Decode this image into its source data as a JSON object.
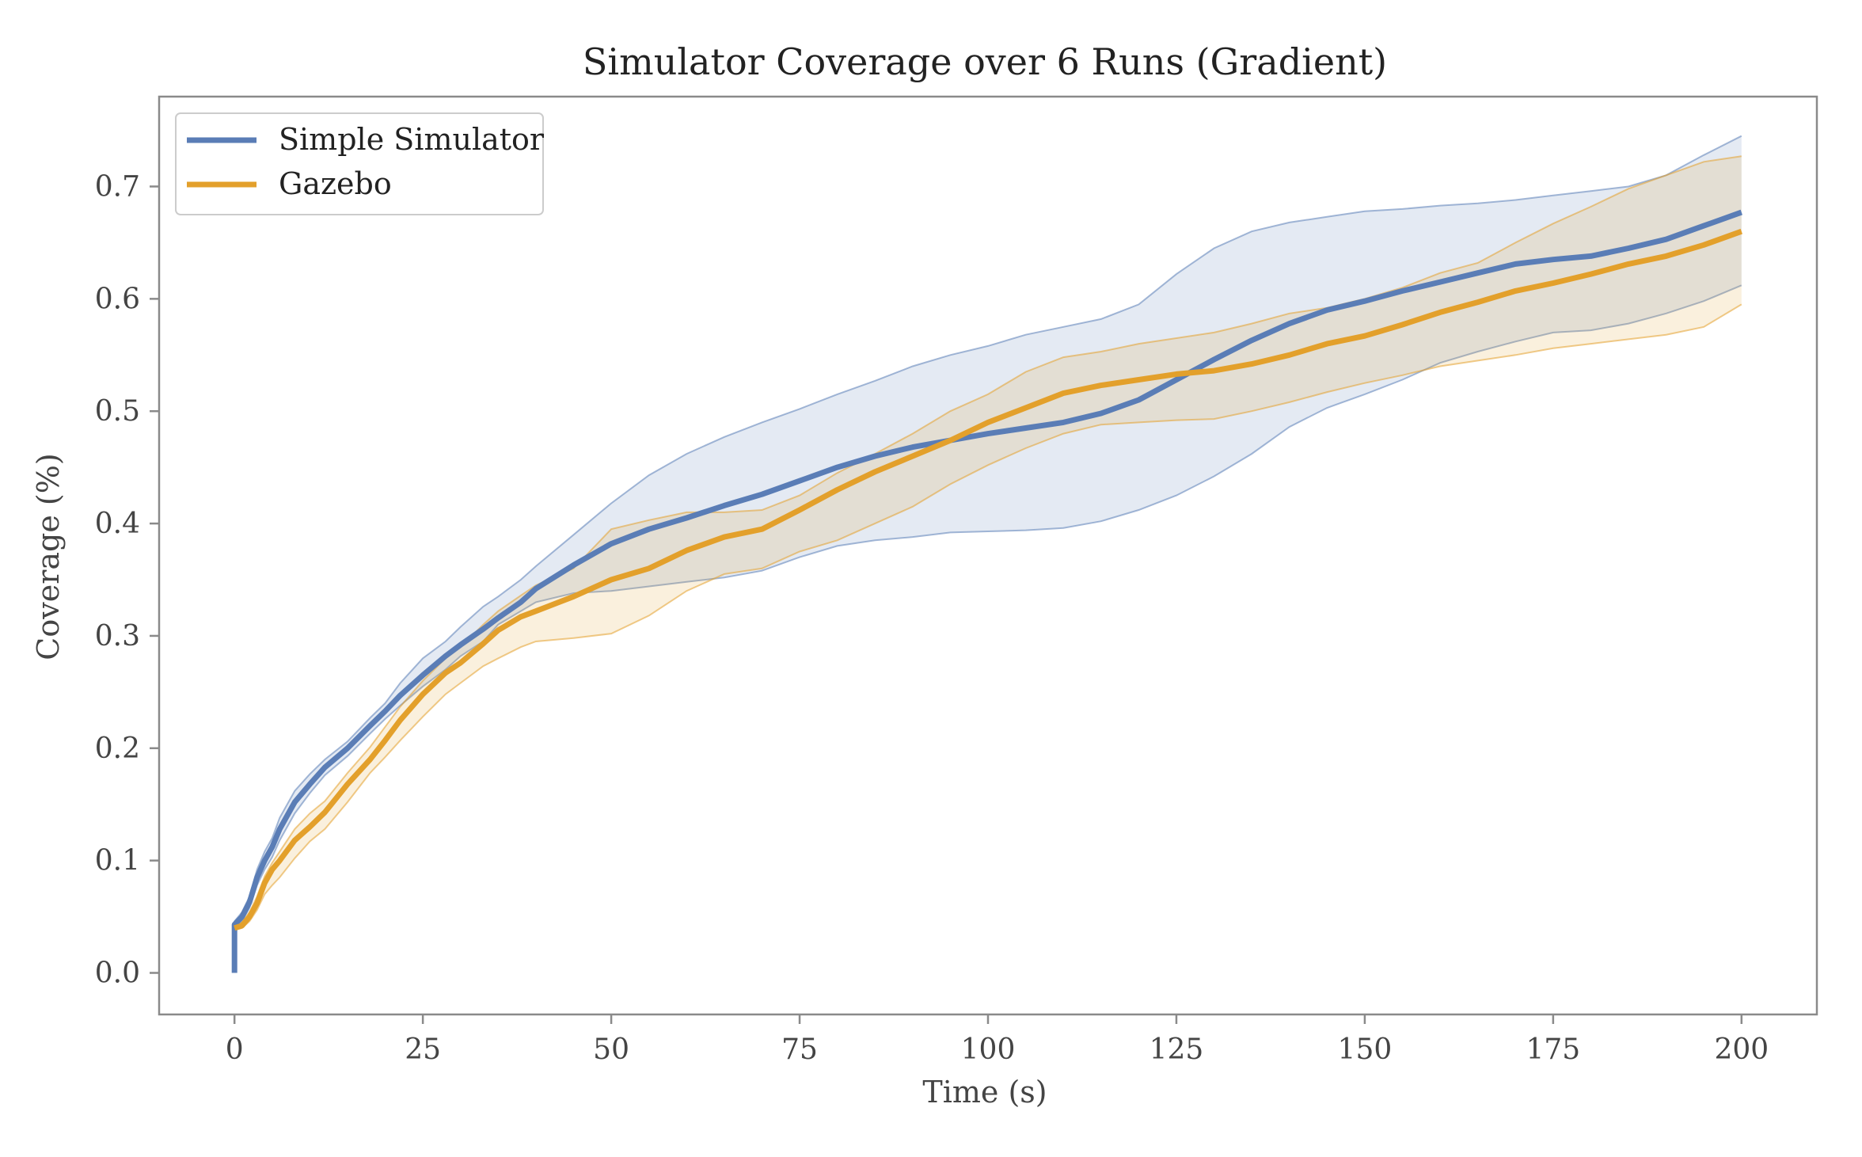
{
  "chart_data": {
    "type": "line",
    "title": "Simulator Coverage over 6 Runs (Gradient)",
    "xlabel": "Time (s)",
    "ylabel": "Coverage (%)",
    "xlim": [
      -10,
      210
    ],
    "ylim": [
      -0.037,
      0.78
    ],
    "xticks": [
      0,
      25,
      50,
      75,
      100,
      125,
      150,
      175,
      200
    ],
    "xtick_labels": [
      "0",
      "25",
      "50",
      "75",
      "100",
      "125",
      "150",
      "175",
      "200"
    ],
    "yticks": [
      0.0,
      0.1,
      0.2,
      0.3,
      0.4,
      0.5,
      0.6,
      0.7
    ],
    "ytick_labels": [
      "0.0",
      "0.1",
      "0.2",
      "0.3",
      "0.4",
      "0.5",
      "0.6",
      "0.7"
    ],
    "grid": false,
    "legend_position": "top-left",
    "colors": {
      "frame": "#8a8a8a",
      "axis_text": "#444444"
    },
    "series": [
      {
        "name": "Simple Simulator",
        "color": "#5a7db6",
        "band_fill": "rgba(90,125,182,0.16)",
        "band_edge": "rgba(90,125,182,0.55)",
        "x": [
          0,
          0,
          1,
          2,
          3,
          4,
          5,
          6,
          8,
          10,
          12,
          15,
          18,
          20,
          22,
          25,
          28,
          30,
          33,
          35,
          38,
          40,
          45,
          50,
          55,
          60,
          65,
          70,
          75,
          80,
          85,
          90,
          95,
          100,
          105,
          110,
          115,
          120,
          125,
          130,
          135,
          140,
          145,
          150,
          155,
          160,
          165,
          170,
          175,
          180,
          185,
          190,
          195,
          200
        ],
        "mean": [
          0.0,
          0.043,
          0.05,
          0.063,
          0.085,
          0.1,
          0.112,
          0.128,
          0.152,
          0.168,
          0.183,
          0.2,
          0.22,
          0.233,
          0.247,
          0.265,
          0.282,
          0.292,
          0.306,
          0.316,
          0.33,
          0.342,
          0.363,
          0.382,
          0.395,
          0.405,
          0.416,
          0.426,
          0.438,
          0.45,
          0.46,
          0.468,
          0.474,
          0.48,
          0.485,
          0.49,
          0.498,
          0.51,
          0.528,
          0.546,
          0.563,
          0.578,
          0.59,
          0.598,
          0.607,
          0.615,
          0.623,
          0.631,
          0.635,
          0.638,
          0.645,
          0.653,
          0.665,
          0.677
        ],
        "upper": [
          0.0,
          0.046,
          0.054,
          0.068,
          0.092,
          0.108,
          0.12,
          0.138,
          0.162,
          0.177,
          0.19,
          0.206,
          0.227,
          0.24,
          0.258,
          0.28,
          0.295,
          0.308,
          0.326,
          0.335,
          0.35,
          0.362,
          0.39,
          0.418,
          0.443,
          0.462,
          0.477,
          0.49,
          0.502,
          0.515,
          0.527,
          0.54,
          0.55,
          0.558,
          0.568,
          0.575,
          0.582,
          0.595,
          0.622,
          0.645,
          0.66,
          0.668,
          0.673,
          0.678,
          0.68,
          0.683,
          0.685,
          0.688,
          0.692,
          0.696,
          0.7,
          0.71,
          0.728,
          0.745
        ],
        "lower": [
          0.0,
          0.04,
          0.046,
          0.058,
          0.078,
          0.092,
          0.103,
          0.118,
          0.142,
          0.16,
          0.176,
          0.193,
          0.213,
          0.226,
          0.238,
          0.255,
          0.27,
          0.282,
          0.295,
          0.31,
          0.322,
          0.33,
          0.338,
          0.34,
          0.344,
          0.348,
          0.352,
          0.358,
          0.37,
          0.38,
          0.385,
          0.388,
          0.392,
          0.393,
          0.394,
          0.396,
          0.402,
          0.412,
          0.425,
          0.442,
          0.462,
          0.486,
          0.503,
          0.515,
          0.528,
          0.543,
          0.553,
          0.562,
          0.57,
          0.572,
          0.578,
          0.587,
          0.598,
          0.612
        ]
      },
      {
        "name": "Gazebo",
        "color": "#e3a02b",
        "band_fill": "rgba(227,160,43,0.16)",
        "band_edge": "rgba(227,160,43,0.55)",
        "x": [
          0,
          1,
          2,
          3,
          4,
          5,
          6,
          8,
          10,
          12,
          15,
          18,
          20,
          22,
          25,
          28,
          30,
          33,
          35,
          38,
          40,
          45,
          50,
          55,
          60,
          65,
          70,
          75,
          80,
          85,
          90,
          95,
          100,
          105,
          110,
          115,
          120,
          125,
          130,
          135,
          140,
          145,
          150,
          155,
          160,
          165,
          170,
          175,
          180,
          185,
          190,
          195,
          200
        ],
        "mean": [
          0.04,
          0.042,
          0.05,
          0.062,
          0.08,
          0.092,
          0.1,
          0.118,
          0.13,
          0.143,
          0.168,
          0.19,
          0.207,
          0.225,
          0.248,
          0.267,
          0.276,
          0.293,
          0.305,
          0.317,
          0.322,
          0.335,
          0.35,
          0.36,
          0.376,
          0.388,
          0.395,
          0.412,
          0.43,
          0.446,
          0.46,
          0.474,
          0.49,
          0.503,
          0.516,
          0.523,
          0.528,
          0.533,
          0.536,
          0.542,
          0.55,
          0.56,
          0.567,
          0.577,
          0.588,
          0.597,
          0.607,
          0.614,
          0.622,
          0.631,
          0.638,
          0.648,
          0.66
        ],
        "upper": [
          0.042,
          0.045,
          0.054,
          0.068,
          0.086,
          0.098,
          0.108,
          0.128,
          0.142,
          0.153,
          0.178,
          0.201,
          0.219,
          0.237,
          0.26,
          0.28,
          0.29,
          0.31,
          0.322,
          0.336,
          0.345,
          0.36,
          0.395,
          0.403,
          0.41,
          0.41,
          0.412,
          0.425,
          0.445,
          0.462,
          0.48,
          0.5,
          0.515,
          0.535,
          0.548,
          0.553,
          0.56,
          0.565,
          0.57,
          0.578,
          0.587,
          0.592,
          0.6,
          0.61,
          0.623,
          0.632,
          0.65,
          0.667,
          0.682,
          0.698,
          0.71,
          0.722,
          0.727
        ],
        "lower": [
          0.038,
          0.04,
          0.046,
          0.056,
          0.07,
          0.078,
          0.085,
          0.102,
          0.117,
          0.128,
          0.152,
          0.178,
          0.192,
          0.207,
          0.228,
          0.248,
          0.258,
          0.273,
          0.28,
          0.29,
          0.295,
          0.298,
          0.302,
          0.318,
          0.34,
          0.355,
          0.36,
          0.375,
          0.385,
          0.4,
          0.415,
          0.435,
          0.452,
          0.467,
          0.48,
          0.488,
          0.49,
          0.492,
          0.493,
          0.5,
          0.508,
          0.517,
          0.525,
          0.532,
          0.54,
          0.545,
          0.55,
          0.556,
          0.56,
          0.564,
          0.568,
          0.575,
          0.595
        ]
      }
    ]
  }
}
